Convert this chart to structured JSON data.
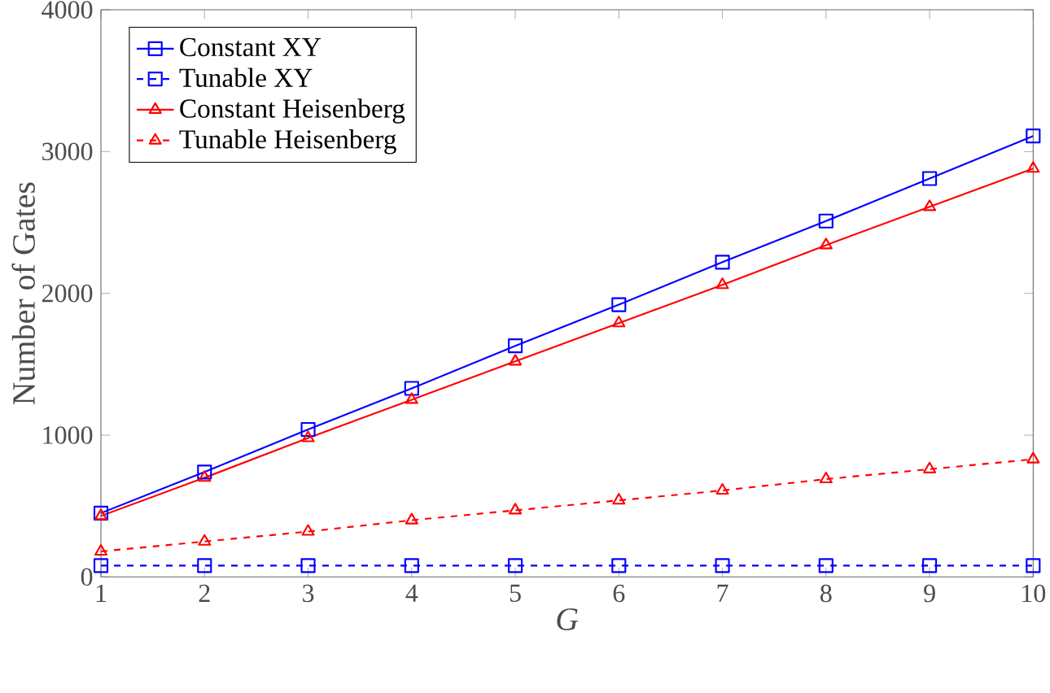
{
  "chart_data": {
    "type": "line",
    "xlabel": "G",
    "ylabel": "Number of Gates",
    "x": [
      1,
      2,
      3,
      4,
      5,
      6,
      7,
      8,
      9,
      10
    ],
    "series": [
      {
        "name": "Constant XY",
        "color": "#0000ff",
        "marker": "square",
        "line_style": "solid",
        "values": [
          450,
          740,
          1040,
          1330,
          1630,
          1920,
          2220,
          2510,
          2810,
          3110
        ]
      },
      {
        "name": "Tunable XY",
        "color": "#0000ff",
        "marker": "square",
        "line_style": "dashed",
        "values": [
          80,
          80,
          80,
          80,
          80,
          80,
          80,
          80,
          80,
          80
        ]
      },
      {
        "name": "Constant Heisenberg",
        "color": "#ff0000",
        "marker": "triangle",
        "line_style": "solid",
        "values": [
          430,
          700,
          980,
          1250,
          1520,
          1790,
          2060,
          2340,
          2610,
          2880
        ]
      },
      {
        "name": "Tunable Heisenberg",
        "color": "#ff0000",
        "marker": "triangle",
        "line_style": "dashed",
        "values": [
          180,
          250,
          320,
          400,
          470,
          540,
          610,
          690,
          760,
          830
        ]
      }
    ],
    "xlim": [
      1,
      10
    ],
    "ylim": [
      0,
      4000
    ],
    "xticks": [
      1,
      2,
      3,
      4,
      5,
      6,
      7,
      8,
      9,
      10
    ],
    "yticks": [
      0,
      1000,
      2000,
      3000,
      4000
    ],
    "grid": false,
    "legend": "top left"
  }
}
